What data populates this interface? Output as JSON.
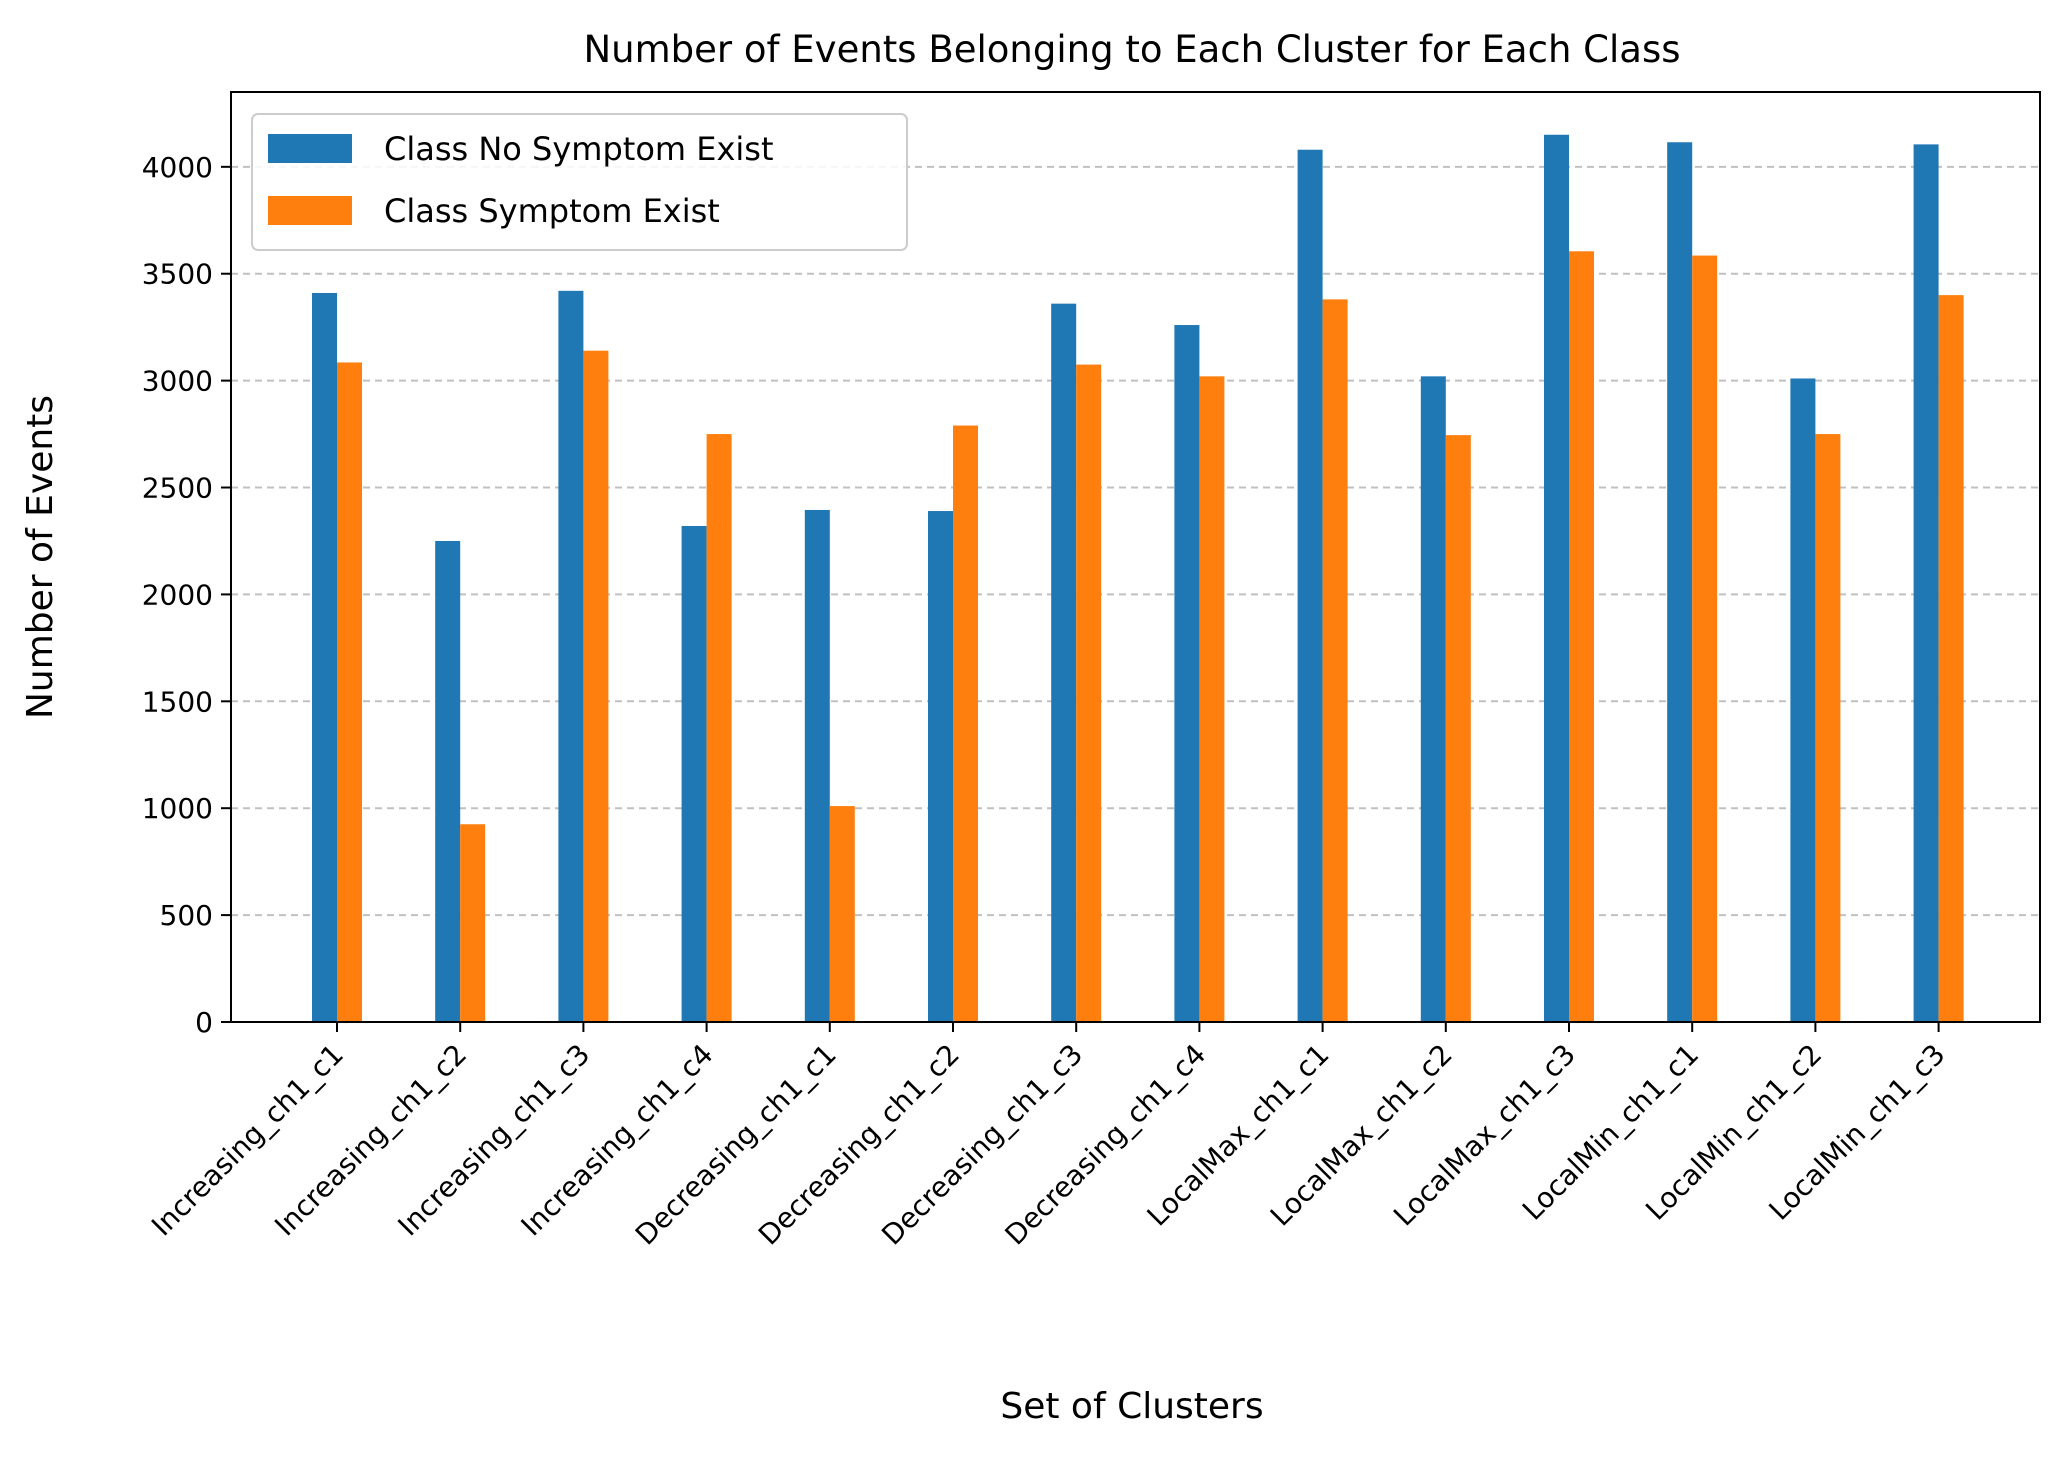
{
  "chart_data": {
    "type": "bar",
    "title": "Number of Events Belonging to Each Cluster for Each Class",
    "xlabel": "Set of Clusters",
    "ylabel": "Number of Events",
    "ylim": [
      0,
      4350
    ],
    "yticks": [
      0,
      500,
      1000,
      1500,
      2000,
      2500,
      3000,
      3500,
      4000
    ],
    "grid": "y-dashed",
    "legend_position": "top-left",
    "categories": [
      "Increasing_ch1_c1",
      "Increasing_ch1_c2",
      "Increasing_ch1_c3",
      "Increasing_ch1_c4",
      "Decreasing_ch1_c1",
      "Decreasing_ch1_c2",
      "Decreasing_ch1_c3",
      "Decreasing_ch1_c4",
      "LocalMax_ch1_c1",
      "LocalMax_ch1_c2",
      "LocalMax_ch1_c3",
      "LocalMin_ch1_c1",
      "LocalMin_ch1_c2",
      "LocalMin_ch1_c3"
    ],
    "series": [
      {
        "name": "Class No Symptom Exist",
        "color": "#1f77b4",
        "values": [
          3410,
          2250,
          3420,
          2320,
          2395,
          2390,
          3360,
          3260,
          4080,
          3020,
          4150,
          4115,
          3010,
          4105
        ]
      },
      {
        "name": "Class Symptom Exist",
        "color": "#ff7f0e",
        "values": [
          3085,
          925,
          3140,
          2750,
          1010,
          2790,
          3075,
          3020,
          3380,
          2745,
          3605,
          3585,
          2750,
          3400
        ]
      }
    ]
  }
}
